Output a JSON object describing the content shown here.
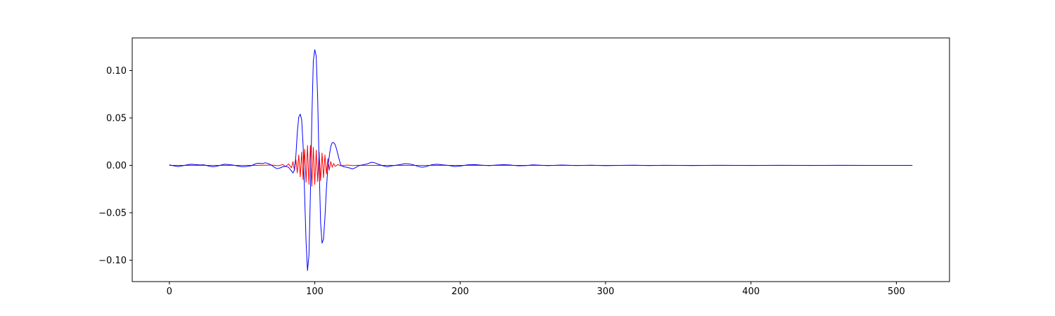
{
  "chart_data": {
    "type": "line",
    "title": "",
    "xlabel": "",
    "ylabel": "",
    "xlim": [
      -25.55,
      536.55
    ],
    "ylim": [
      -0.1226,
      0.1344
    ],
    "grid": false,
    "legend": "none",
    "xticks": [
      0,
      100,
      200,
      300,
      400,
      500
    ],
    "xtick_labels": [
      "0",
      "100",
      "200",
      "300",
      "400",
      "500"
    ],
    "yticks": [
      -0.1,
      -0.05,
      0.0,
      0.05,
      0.1
    ],
    "ytick_labels": [
      "−0.10",
      "−0.05",
      "0.00",
      "0.05",
      "0.10"
    ],
    "series": [
      {
        "color": "#ff0000",
        "points": [
          [
            0,
            0
          ],
          [
            60,
            0
          ],
          [
            70,
            0.0003
          ],
          [
            75,
            -0.0004
          ],
          [
            78,
            0.0008
          ],
          [
            80,
            -0.0012
          ],
          [
            82,
            0.0015
          ],
          [
            84,
            -0.0025
          ],
          [
            85,
            0.004
          ],
          [
            86,
            -0.005
          ],
          [
            87,
            0.006
          ],
          [
            88,
            -0.008
          ],
          [
            89,
            0.011
          ],
          [
            90,
            -0.012
          ],
          [
            91,
            0.014
          ],
          [
            92,
            -0.015
          ],
          [
            93,
            0.017
          ],
          [
            94,
            -0.018
          ],
          [
            95,
            0.021
          ],
          [
            96,
            -0.02
          ],
          [
            97,
            0.021
          ],
          [
            98,
            -0.022
          ],
          [
            99,
            0.019
          ],
          [
            100,
            -0.02
          ],
          [
            101,
            0.016
          ],
          [
            102,
            -0.017
          ],
          [
            103,
            0.014
          ],
          [
            104,
            -0.016
          ],
          [
            105,
            0.013
          ],
          [
            106,
            -0.013
          ],
          [
            107,
            0.011
          ],
          [
            108,
            -0.009
          ],
          [
            109,
            0.007
          ],
          [
            110,
            -0.005
          ],
          [
            111,
            0.004
          ],
          [
            112,
            -0.002
          ],
          [
            113,
            0.002
          ],
          [
            114,
            -0.001
          ],
          [
            116,
            0.0008
          ],
          [
            118,
            -0.0005
          ],
          [
            122,
            0.0003
          ],
          [
            126,
            -0.0002
          ],
          [
            130,
            0.0001
          ],
          [
            140,
            0
          ],
          [
            511,
            0
          ]
        ]
      },
      {
        "color": "#0000ff",
        "points": [
          [
            0,
            0.0005
          ],
          [
            3,
            -0.0005
          ],
          [
            6,
            -0.0012
          ],
          [
            9,
            -0.0005
          ],
          [
            12,
            0.0005
          ],
          [
            15,
            0.0012
          ],
          [
            18,
            0.0008
          ],
          [
            21,
            0.0004
          ],
          [
            24,
            0.0005
          ],
          [
            27,
            -0.0008
          ],
          [
            30,
            -0.0015
          ],
          [
            33,
            -0.0008
          ],
          [
            36,
            0.0005
          ],
          [
            38,
            0.0012
          ],
          [
            41,
            0.0008
          ],
          [
            44,
            0.0003
          ],
          [
            47,
            -0.0008
          ],
          [
            50,
            -0.0015
          ],
          [
            53,
            -0.0012
          ],
          [
            56,
            -0.0005
          ],
          [
            58,
            0.0008
          ],
          [
            60,
            0.002
          ],
          [
            62,
            0.0022
          ],
          [
            64,
            0.0018
          ],
          [
            66,
            0.0028
          ],
          [
            68,
            0.0018
          ],
          [
            70,
            0.0005
          ],
          [
            72,
            -0.0018
          ],
          [
            74,
            -0.0035
          ],
          [
            76,
            -0.0028
          ],
          [
            78,
            -0.0015
          ],
          [
            80,
            -0.001
          ],
          [
            82,
            -0.002
          ],
          [
            83,
            -0.004
          ],
          [
            84,
            -0.006
          ],
          [
            85,
            -0.008
          ],
          [
            86,
            -0.005
          ],
          [
            87,
            0.01
          ],
          [
            88,
            0.035
          ],
          [
            89,
            0.051
          ],
          [
            90,
            0.054
          ],
          [
            91,
            0.048
          ],
          [
            92,
            0.02
          ],
          [
            93,
            -0.03
          ],
          [
            94,
            -0.08
          ],
          [
            95,
            -0.111
          ],
          [
            96,
            -0.095
          ],
          [
            97,
            -0.03
          ],
          [
            98,
            0.05
          ],
          [
            99,
            0.11
          ],
          [
            100,
            0.122
          ],
          [
            101,
            0.115
          ],
          [
            102,
            0.07
          ],
          [
            103,
            0.0
          ],
          [
            104,
            -0.06
          ],
          [
            105,
            -0.082
          ],
          [
            106,
            -0.078
          ],
          [
            107,
            -0.055
          ],
          [
            108,
            -0.025
          ],
          [
            109,
            -0.002
          ],
          [
            110,
            0.01
          ],
          [
            111,
            0.02
          ],
          [
            112,
            0.024
          ],
          [
            113,
            0.024
          ],
          [
            114,
            0.022
          ],
          [
            115,
            0.017
          ],
          [
            116,
            0.011
          ],
          [
            117,
            0.005
          ],
          [
            118,
            0.0
          ],
          [
            120,
            -0.0015
          ],
          [
            122,
            -0.002
          ],
          [
            124,
            -0.0028
          ],
          [
            126,
            -0.0038
          ],
          [
            128,
            -0.0025
          ],
          [
            130,
            -0.0005
          ],
          [
            133,
            0.0005
          ],
          [
            136,
            0.0015
          ],
          [
            139,
            0.0032
          ],
          [
            141,
            0.0028
          ],
          [
            144,
            0.001
          ],
          [
            147,
            -0.0005
          ],
          [
            150,
            -0.0015
          ],
          [
            153,
            -0.0005
          ],
          [
            156,
            0.0002
          ],
          [
            159,
            0.0008
          ],
          [
            162,
            0.0018
          ],
          [
            165,
            0.0015
          ],
          [
            168,
            0.0005
          ],
          [
            171,
            -0.0012
          ],
          [
            174,
            -0.002
          ],
          [
            177,
            -0.0012
          ],
          [
            180,
            0.0005
          ],
          [
            184,
            0.0012
          ],
          [
            188,
            0.0005
          ],
          [
            192,
            0.0
          ],
          [
            196,
            -0.0012
          ],
          [
            200,
            -0.0008
          ],
          [
            205,
            0.0005
          ],
          [
            210,
            0.0008
          ],
          [
            215,
            0.0002
          ],
          [
            220,
            -0.0003
          ],
          [
            225,
            0.0003
          ],
          [
            230,
            0.0007
          ],
          [
            235,
            0.0003
          ],
          [
            240,
            -0.0005
          ],
          [
            245,
            -0.0003
          ],
          [
            250,
            0.0005
          ],
          [
            255,
            0.0002
          ],
          [
            260,
            -0.0003
          ],
          [
            270,
            0.0003
          ],
          [
            280,
            -0.0002
          ],
          [
            290,
            0.0002
          ],
          [
            300,
            -0.0003
          ],
          [
            310,
            0.0
          ],
          [
            320,
            0.0002
          ],
          [
            330,
            -0.0002
          ],
          [
            340,
            0.0001
          ],
          [
            350,
            0.0
          ],
          [
            360,
            -0.0002
          ],
          [
            380,
            0.0001
          ],
          [
            400,
            -0.0001
          ],
          [
            420,
            0.0001
          ],
          [
            440,
            -0.0001
          ],
          [
            460,
            0.0001
          ],
          [
            480,
            0.0
          ],
          [
            500,
            0.0
          ],
          [
            511,
            0.0
          ]
        ]
      }
    ]
  }
}
